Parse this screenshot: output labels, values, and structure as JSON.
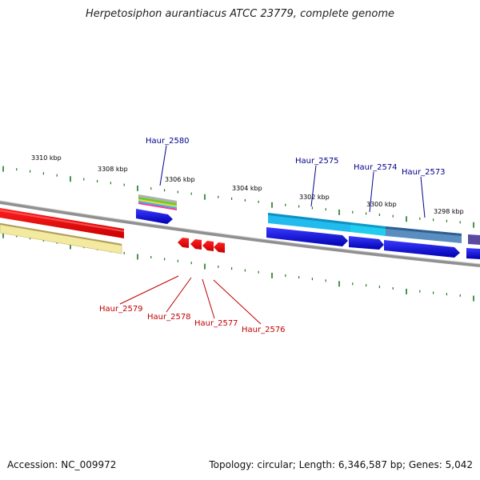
{
  "title": "Herpetosiphon aurantiacus ATCC 23779, complete genome",
  "accession_label": "Accession: NC_009972",
  "summary_label": "Topology: circular; Length: 6,346,587 bp; Genes: 5,042",
  "ruler_labels": [
    "3310 kbp",
    "3308 kbp",
    "3306 kbp",
    "3304 kbp",
    "3302 kbp",
    "3300 kbp",
    "3298 kbp"
  ],
  "gene_labels_top": [
    "Haur_2580",
    "Haur_2575",
    "Haur_2574",
    "Haur_2573"
  ],
  "gene_labels_bottom": [
    "Haur_2579",
    "Haur_2578",
    "Haur_2577",
    "Haur_2576"
  ],
  "colors": {
    "top_label": "#00008b",
    "bottom_label": "#c00000",
    "tick": "#1a7a1a",
    "backbone": "#808080",
    "blue_gene": "#0000ee",
    "cyan_gene": "#22bbee",
    "red_gene": "#ee0000",
    "yellow_gene": "#f3eaa0"
  }
}
